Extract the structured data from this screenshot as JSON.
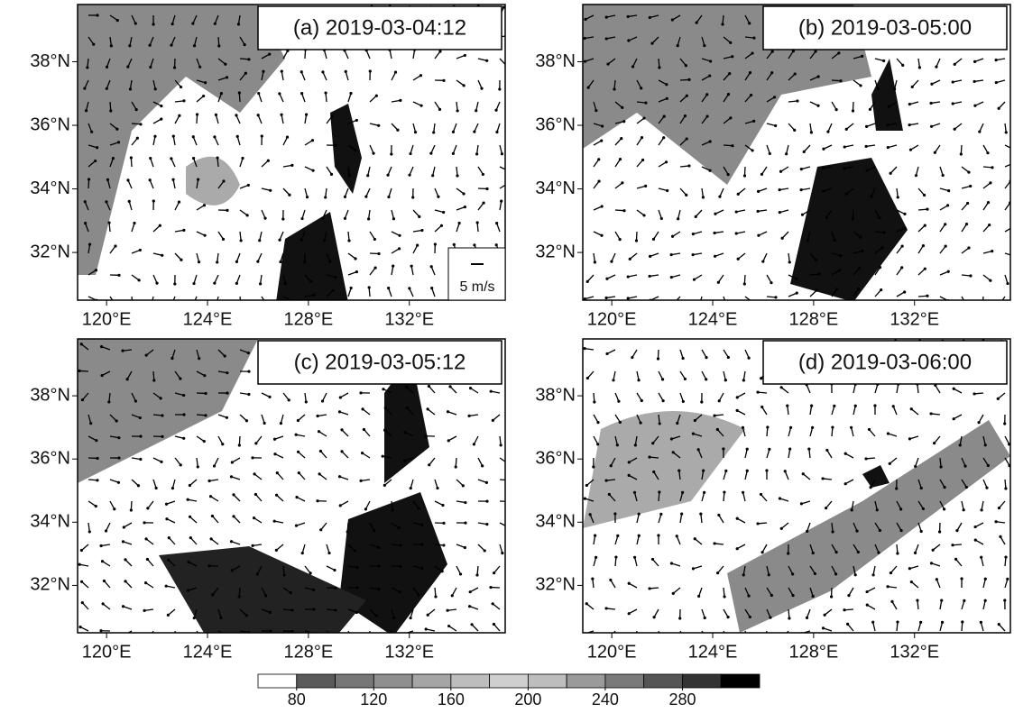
{
  "panels": [
    {
      "title": "(a) 2019-03-04:12",
      "xlim": [
        118.85,
        135.8
      ],
      "ylim": [
        30.5,
        39.8
      ],
      "xticks": [
        {
          "value": 120,
          "label": "120°E"
        },
        {
          "value": 124,
          "label": "124°E"
        },
        {
          "value": 128,
          "label": "128°E"
        },
        {
          "value": 132,
          "label": "132°E"
        }
      ],
      "yticks": [
        {
          "value": 32,
          "label": "32°N"
        },
        {
          "value": 34,
          "label": "34°N"
        },
        {
          "value": 36,
          "label": "36°N"
        },
        {
          "value": 38,
          "label": "38°N"
        }
      ]
    },
    {
      "title": "(b) 2019-03-05:00",
      "xlim": [
        118.85,
        135.8
      ],
      "ylim": [
        30.5,
        39.8
      ],
      "xticks": [
        {
          "value": 120,
          "label": "120°E"
        },
        {
          "value": 124,
          "label": "124°E"
        },
        {
          "value": 128,
          "label": "128°E"
        },
        {
          "value": 132,
          "label": "132°E"
        }
      ],
      "yticks": [
        {
          "value": 32,
          "label": "32°N"
        },
        {
          "value": 34,
          "label": "34°N"
        },
        {
          "value": 36,
          "label": "36°N"
        },
        {
          "value": 38,
          "label": "38°N"
        }
      ]
    },
    {
      "title": "(c) 2019-03-05:12",
      "xlim": [
        118.85,
        135.8
      ],
      "ylim": [
        30.5,
        39.8
      ],
      "xticks": [
        {
          "value": 120,
          "label": "120°E"
        },
        {
          "value": 124,
          "label": "124°E"
        },
        {
          "value": 128,
          "label": "128°E"
        },
        {
          "value": 132,
          "label": "132°E"
        }
      ],
      "yticks": [
        {
          "value": 32,
          "label": "32°N"
        },
        {
          "value": 34,
          "label": "34°N"
        },
        {
          "value": 36,
          "label": "36°N"
        },
        {
          "value": 38,
          "label": "38°N"
        }
      ]
    },
    {
      "title": "(d) 2019-03-06:00",
      "xlim": [
        118.85,
        135.8
      ],
      "ylim": [
        30.5,
        39.8
      ],
      "xticks": [
        {
          "value": 120,
          "label": "120°E"
        },
        {
          "value": 124,
          "label": "124°E"
        },
        {
          "value": 128,
          "label": "128°E"
        },
        {
          "value": 132,
          "label": "132°E"
        }
      ],
      "yticks": [
        {
          "value": 32,
          "label": "32°N"
        },
        {
          "value": 34,
          "label": "34°N"
        },
        {
          "value": 36,
          "label": "36°N"
        },
        {
          "value": 38,
          "label": "38°N"
        }
      ]
    }
  ],
  "reference_vector": "5 m/s",
  "colorbar": {
    "lim": [
      60,
      320
    ],
    "ticks": [
      80,
      120,
      160,
      200,
      240,
      280
    ]
  }
}
